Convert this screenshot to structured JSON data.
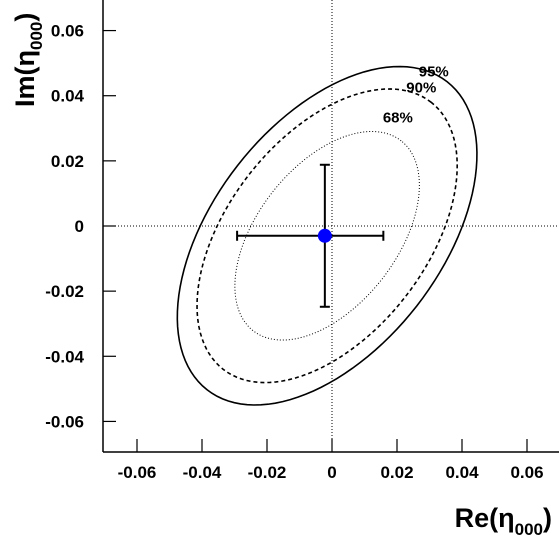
{
  "chart_data": {
    "type": "scatter",
    "xlabel": [
      "Re(η",
      "000",
      ")"
    ],
    "ylabel": [
      "Im(η",
      "000",
      ")"
    ],
    "xlim": [
      -0.07,
      0.07
    ],
    "ylim": [
      -0.07,
      0.07
    ],
    "xticks": [
      -0.06,
      -0.04,
      -0.02,
      0,
      0.02,
      0.04,
      0.06
    ],
    "yticks": [
      -0.06,
      -0.04,
      -0.02,
      0,
      0.02,
      0.04,
      0.06
    ],
    "reference_lines": {
      "x": 0,
      "y": 0
    },
    "point": {
      "x": -0.0022,
      "y": -0.003,
      "xerr_minus": 0.027,
      "xerr_plus": 0.018,
      "yerr": 0.0218,
      "color": "#0000ff"
    },
    "ellipses": [
      {
        "name": "95%",
        "cx": -0.0015,
        "cy": -0.003,
        "a": 0.06,
        "b": 0.035,
        "angle": 52,
        "style": "solid"
      },
      {
        "name": "90%",
        "cx": -0.0015,
        "cy": -0.003,
        "a": 0.052,
        "b": 0.0305,
        "angle": 52,
        "style": "dashed"
      },
      {
        "name": "68%",
        "cx": -0.0015,
        "cy": -0.003,
        "a": 0.037,
        "b": 0.0215,
        "angle": 52,
        "style": "dotted"
      }
    ]
  }
}
